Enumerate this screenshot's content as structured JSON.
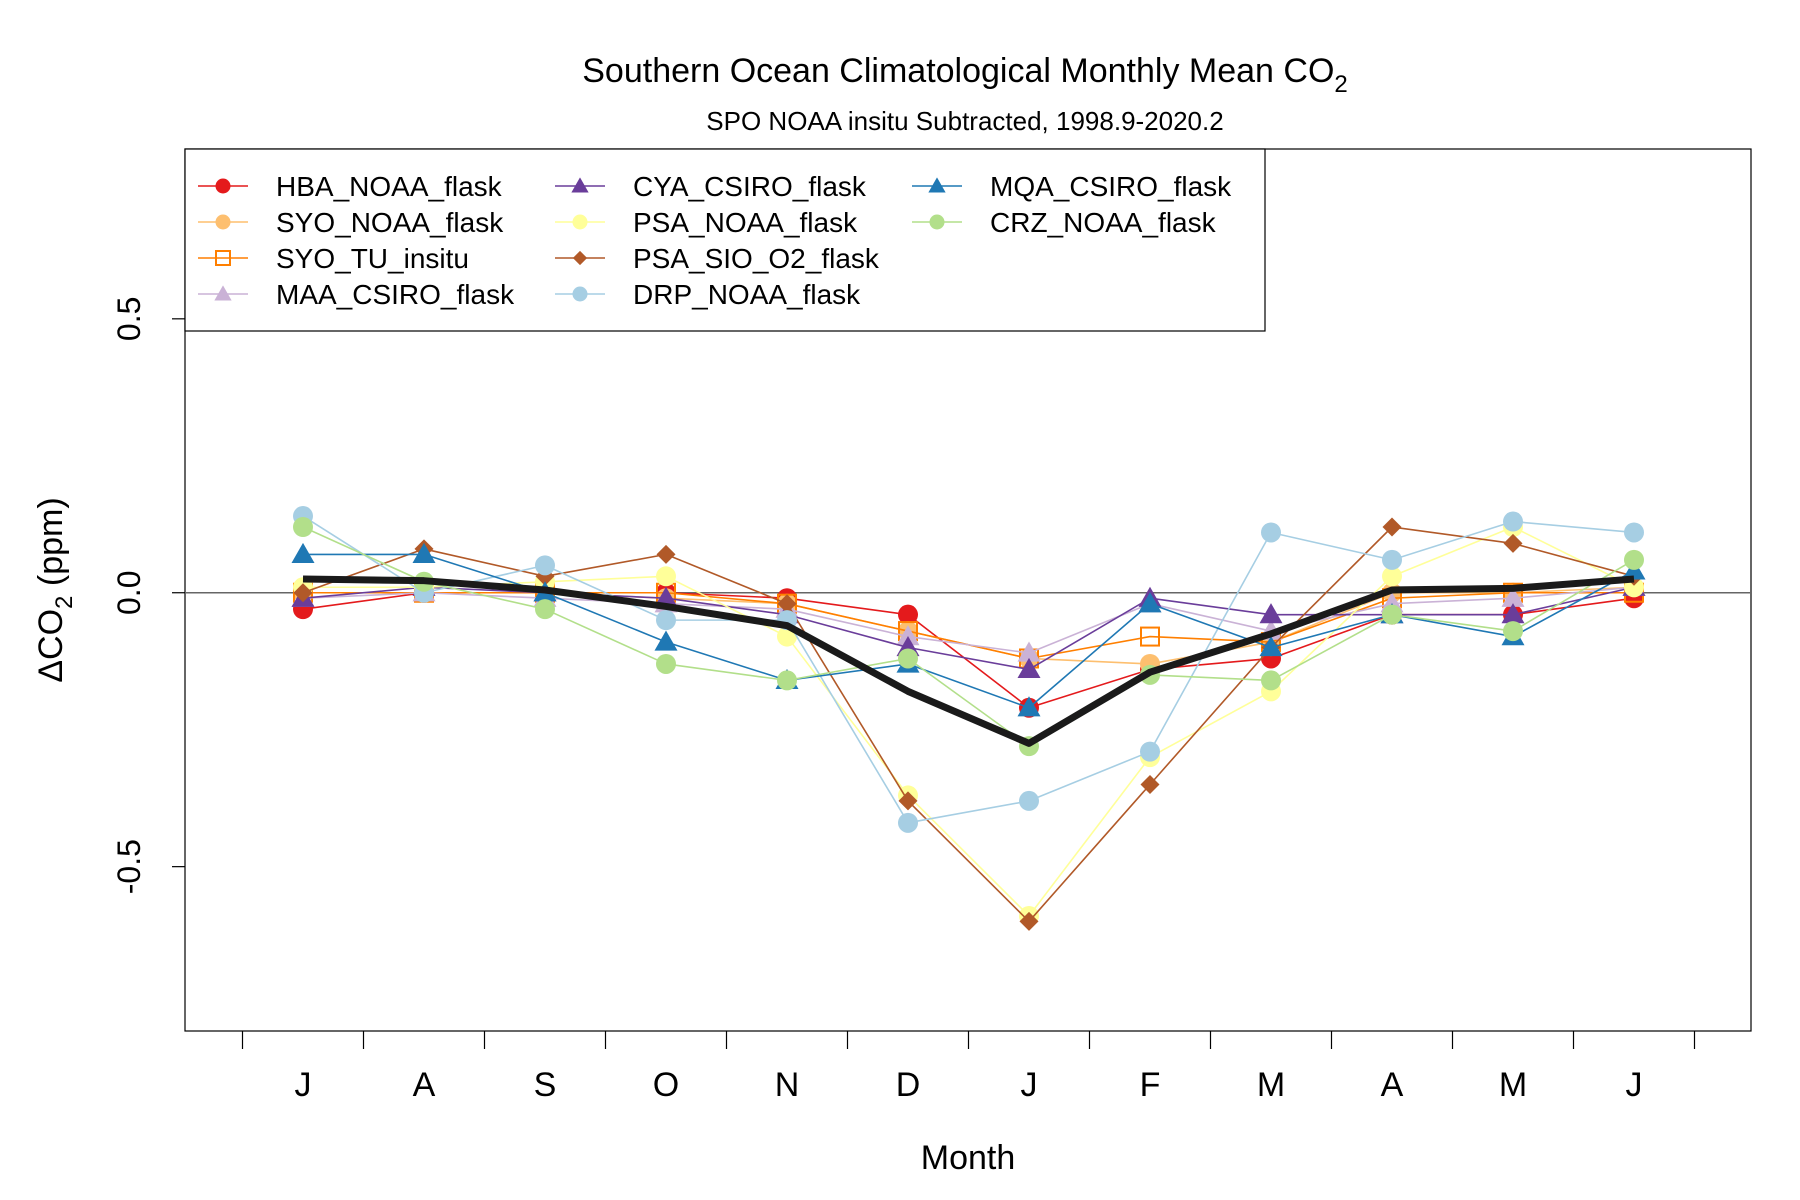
{
  "chart_data": {
    "type": "line",
    "title": "Southern Ocean Climatological Monthly Mean CO",
    "title_subscript": "2",
    "subtitle": "SPO NOAA insitu Subtracted, 1998.9-2020.2",
    "xlabel": "Month",
    "ylabel_prefix": "ΔCO",
    "ylabel_subscript": "2",
    "ylabel_suffix": " (ppm)",
    "categories": [
      "J",
      "A",
      "S",
      "O",
      "N",
      "D",
      "J",
      "F",
      "M",
      "A",
      "M",
      "J"
    ],
    "yticks": [
      "0.5",
      "0.0",
      "-0.5"
    ],
    "ytick_values": [
      0.5,
      0.0,
      -0.5
    ],
    "ylim": [
      -0.8,
      0.81
    ],
    "grid": false,
    "reference_line_y": 0.0,
    "legend_position": "top-left",
    "series": [
      {
        "name": "HBA_NOAA_flask",
        "color": "#e41a1c",
        "marker": "circle",
        "values": [
          -0.03,
          0.0,
          0.0,
          0.0,
          -0.01,
          -0.04,
          -0.21,
          -0.14,
          -0.12,
          -0.04,
          -0.04,
          -0.01
        ]
      },
      {
        "name": "SYO_NOAA_flask",
        "color": "#fdbf6f",
        "marker": "circle",
        "values": [
          0.0,
          0.0,
          0.0,
          -0.01,
          -0.02,
          -0.07,
          -0.12,
          -0.13,
          -0.09,
          0.0,
          0.0,
          0.01
        ]
      },
      {
        "name": "SYO_TU_insitu",
        "color": "#ff7f00",
        "marker": "square",
        "values": [
          0.0,
          0.0,
          0.0,
          0.0,
          -0.02,
          -0.07,
          -0.12,
          -0.08,
          -0.09,
          -0.01,
          0.0,
          0.0
        ]
      },
      {
        "name": "MAA_CSIRO_flask",
        "color": "#cab2d6",
        "marker": "triangle",
        "values": [
          -0.01,
          0.0,
          -0.01,
          -0.02,
          -0.03,
          -0.08,
          -0.11,
          -0.02,
          -0.07,
          -0.02,
          -0.01,
          0.01
        ]
      },
      {
        "name": "CYA_CSIRO_flask",
        "color": "#6a3d9a",
        "marker": "triangle",
        "values": [
          -0.01,
          0.01,
          0.0,
          -0.01,
          -0.04,
          -0.1,
          -0.14,
          -0.01,
          -0.04,
          -0.04,
          -0.04,
          0.01
        ]
      },
      {
        "name": "PSA_NOAA_flask",
        "color": "#ffff99",
        "marker": "circle",
        "values": [
          0.01,
          0.01,
          0.02,
          0.03,
          -0.08,
          -0.37,
          -0.59,
          -0.3,
          -0.18,
          0.03,
          0.12,
          0.01
        ]
      },
      {
        "name": "PSA_SIO_O2_flask",
        "color": "#b15928",
        "marker": "diamond",
        "values": [
          0.0,
          0.08,
          0.03,
          0.07,
          -0.02,
          -0.38,
          -0.6,
          -0.35,
          -0.1,
          0.12,
          0.09,
          0.03
        ]
      },
      {
        "name": "DRP_NOAA_flask",
        "color": "#a6cee3",
        "marker": "circle",
        "values": [
          0.14,
          0.0,
          0.05,
          -0.05,
          -0.05,
          -0.42,
          -0.38,
          -0.29,
          0.11,
          0.06,
          0.13,
          0.11
        ]
      },
      {
        "name": "MQA_CSIRO_flask",
        "color": "#1f78b4",
        "marker": "triangle",
        "values": [
          0.07,
          0.07,
          0.0,
          -0.09,
          -0.16,
          -0.13,
          -0.21,
          -0.02,
          -0.1,
          -0.04,
          -0.08,
          0.04
        ]
      },
      {
        "name": "CRZ_NOAA_flask",
        "color": "#b2df8a",
        "marker": "circle",
        "values": [
          0.12,
          0.02,
          -0.03,
          -0.13,
          -0.16,
          -0.12,
          -0.28,
          -0.15,
          -0.16,
          -0.04,
          -0.07,
          0.06
        ]
      },
      {
        "name": "",
        "color": "#1a1a1a",
        "marker": "none",
        "values": [
          0.025,
          0.022,
          0.005,
          -0.025,
          -0.06,
          -0.18,
          -0.275,
          -0.145,
          -0.075,
          0.005,
          0.008,
          0.025
        ]
      }
    ]
  }
}
